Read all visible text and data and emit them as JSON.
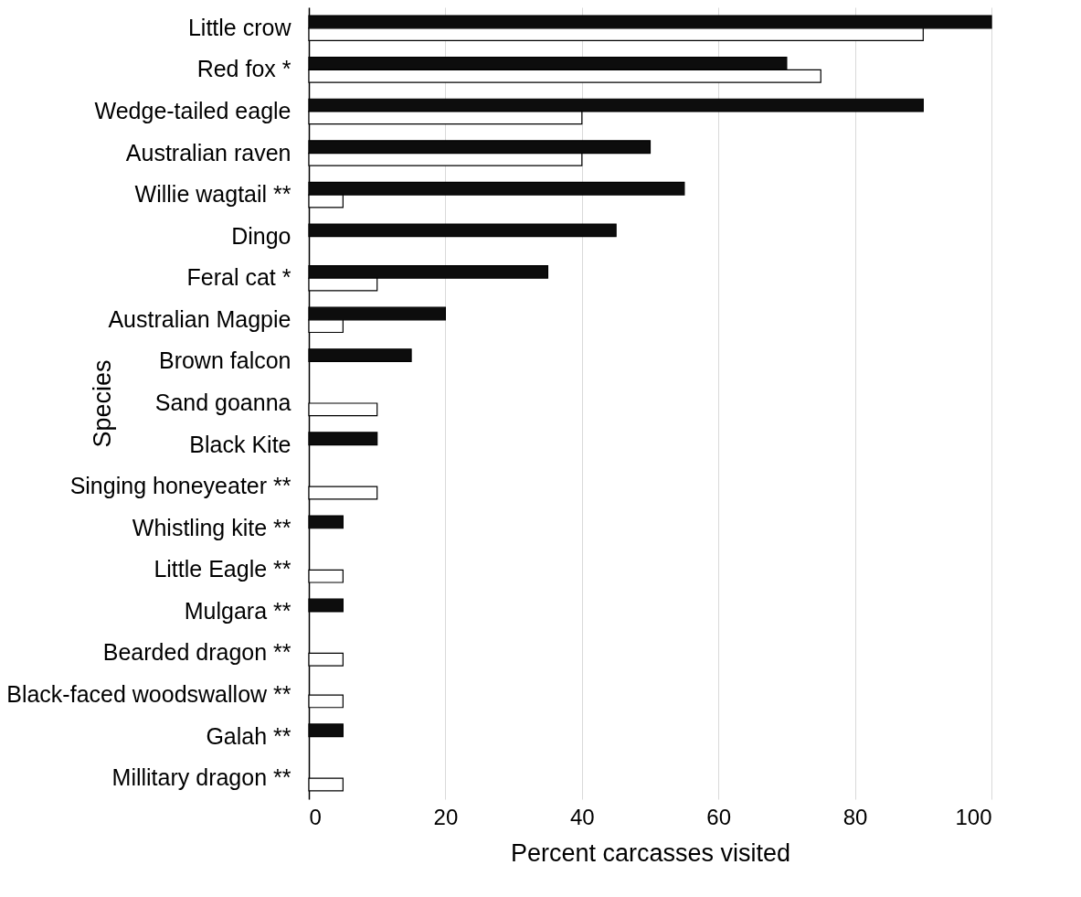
{
  "chart_data": {
    "type": "bar",
    "orientation": "horizontal",
    "xlabel": "Percent carcasses visited",
    "ylabel": "Species",
    "categories": [
      "Little crow",
      "Red fox *",
      "Wedge-tailed eagle",
      "Australian raven",
      "Willie wagtail **",
      "Dingo",
      "Feral cat *",
      "Australian Magpie",
      "Brown falcon",
      "Sand goanna",
      "Black Kite",
      "Singing honeyeater **",
      "Whistling kite **",
      "Little Eagle **",
      "Mulgara **",
      "Bearded dragon **",
      "Black-faced woodswallow **",
      "Galah **",
      "Millitary dragon **"
    ],
    "series": [
      {
        "color": "#0d0d0d",
        "values": [
          100,
          70,
          90,
          50,
          55,
          45,
          35,
          20,
          15,
          null,
          10,
          null,
          5,
          null,
          5,
          null,
          null,
          5,
          null
        ]
      },
      {
        "color": "#ffffff",
        "values": [
          90,
          75,
          40,
          40,
          5,
          null,
          10,
          5,
          null,
          10,
          null,
          10,
          null,
          5,
          null,
          5,
          5,
          null,
          5
        ]
      }
    ],
    "xlim": [
      0,
      100
    ],
    "xticks": [
      0,
      20,
      40,
      60,
      80,
      100
    ],
    "grid": "x",
    "legend": false
  }
}
